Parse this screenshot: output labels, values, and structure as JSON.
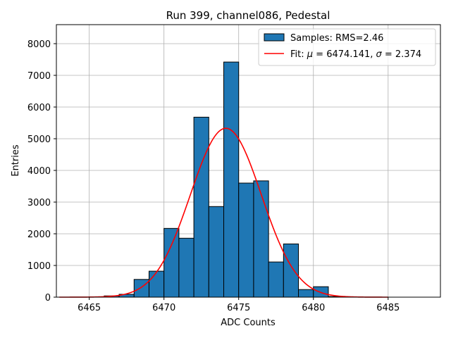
{
  "chart_data": {
    "type": "bar",
    "title": "Run 399, channel086, Pedestal",
    "xlabel": "ADC Counts",
    "ylabel": "Entries",
    "xlim": [
      6462.8,
      6488.5
    ],
    "ylim": [
      0,
      8600
    ],
    "xticks": [
      6465,
      6470,
      6475,
      6480,
      6485
    ],
    "yticks": [
      0,
      1000,
      2000,
      3000,
      4000,
      5000,
      6000,
      7000,
      8000
    ],
    "grid": true,
    "legend_position": "top-right",
    "bar_color": "#1f77b4",
    "fit_color": "#ff0000",
    "histogram": {
      "name": "Samples: RMS=2.46",
      "bin_width": 1,
      "bins": [
        {
          "x": 6466,
          "value": 40
        },
        {
          "x": 6467,
          "value": 90
        },
        {
          "x": 6468,
          "value": 560
        },
        {
          "x": 6469,
          "value": 820
        },
        {
          "x": 6470,
          "value": 2170
        },
        {
          "x": 6471,
          "value": 1860
        },
        {
          "x": 6472,
          "value": 5680
        },
        {
          "x": 6473,
          "value": 2860
        },
        {
          "x": 6474,
          "value": 7420
        },
        {
          "x": 6475,
          "value": 3600
        },
        {
          "x": 6476,
          "value": 3670
        },
        {
          "x": 6477,
          "value": 1110
        },
        {
          "x": 6478,
          "value": 1680
        },
        {
          "x": 6479,
          "value": 240
        },
        {
          "x": 6480,
          "value": 330
        },
        {
          "x": 6481,
          "value": 20
        }
      ]
    },
    "fit": {
      "mu": 6474.141,
      "sigma": 2.374,
      "amplitude": 5330,
      "x_range": [
        6463,
        6485
      ]
    },
    "legend": {
      "entries": [
        {
          "type": "patch",
          "text": "Samples: RMS=2.46"
        },
        {
          "type": "line",
          "prefix": "Fit: ",
          "mu_sym": "μ",
          "mu_text": " = 6474.141, ",
          "sigma_sym": "σ",
          "sigma_text": " = 2.374"
        }
      ]
    }
  }
}
